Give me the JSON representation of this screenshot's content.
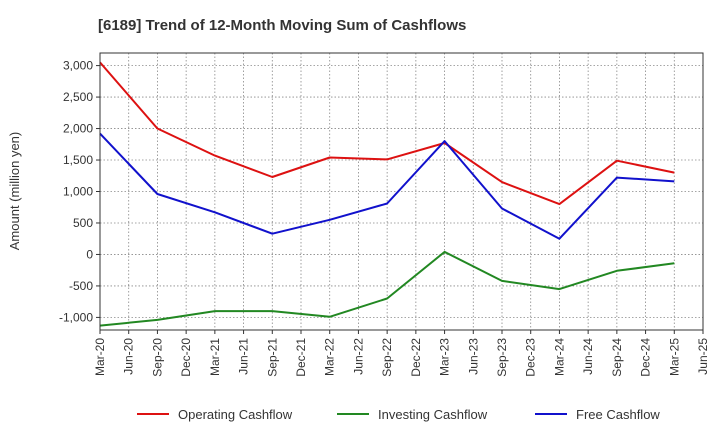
{
  "chart_data": {
    "type": "line",
    "title": "[6189]  Trend of 12-Month Moving Sum of Cashflows",
    "ylabel": "Amount (million yen)",
    "xlabel": "",
    "ylim": [
      -1200,
      3200
    ],
    "yticks": [
      3000,
      2500,
      2000,
      1500,
      1000,
      500,
      0,
      -500,
      -1000
    ],
    "ytick_labels": [
      "3,000",
      "2,500",
      "2,000",
      "1,500",
      "1,000",
      "500",
      "0",
      "-500",
      "-1,000"
    ],
    "x_ticks": [
      "Mar-20",
      "Jun-20",
      "Sep-20",
      "Dec-20",
      "Mar-21",
      "Jun-21",
      "Sep-21",
      "Dec-21",
      "Mar-22",
      "Jun-22",
      "Sep-22",
      "Dec-22",
      "Mar-23",
      "Jun-23",
      "Sep-23",
      "Dec-23",
      "Mar-24",
      "Jun-24",
      "Sep-24",
      "Dec-24",
      "Mar-25",
      "Jun-25"
    ],
    "grid": true,
    "legend_position": "bottom",
    "series": [
      {
        "name": "Operating Cashflow",
        "color": "#dd1111",
        "x": [
          "Mar-20",
          "Sep-20",
          "Mar-21",
          "Sep-21",
          "Mar-22",
          "Sep-22",
          "Mar-23",
          "Sep-23",
          "Mar-24",
          "Sep-24",
          "Mar-25"
        ],
        "values": [
          3050,
          2000,
          1570,
          1230,
          1540,
          1510,
          1770,
          1150,
          800,
          1490,
          1300
        ]
      },
      {
        "name": "Investing Cashflow",
        "color": "#228822",
        "x": [
          "Mar-20",
          "Sep-20",
          "Mar-21",
          "Sep-21",
          "Mar-22",
          "Sep-22",
          "Mar-23",
          "Sep-23",
          "Mar-24",
          "Sep-24",
          "Mar-25"
        ],
        "values": [
          -1130,
          -1040,
          -900,
          -900,
          -990,
          -700,
          40,
          -420,
          -550,
          -260,
          -140
        ]
      },
      {
        "name": "Free Cashflow",
        "color": "#1111cc",
        "x": [
          "Mar-20",
          "Sep-20",
          "Mar-21",
          "Sep-21",
          "Mar-22",
          "Sep-22",
          "Mar-23",
          "Sep-23",
          "Mar-24",
          "Sep-24",
          "Mar-25"
        ],
        "values": [
          1920,
          960,
          670,
          330,
          550,
          810,
          1800,
          730,
          250,
          1220,
          1160
        ]
      }
    ]
  }
}
